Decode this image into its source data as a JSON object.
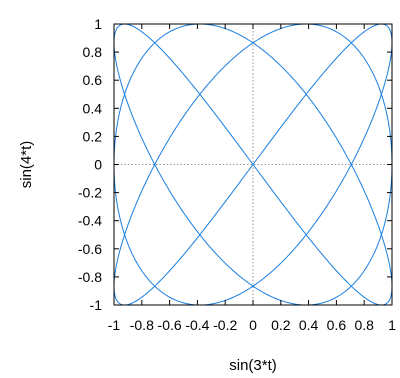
{
  "chart_data": {
    "type": "line",
    "title": "",
    "xlabel": "sin(3*t)",
    "ylabel": "sin(4*t)",
    "xlim": [
      -1,
      1
    ],
    "ylim": [
      -1,
      1
    ],
    "x_ticks": [
      -1,
      -0.8,
      -0.6,
      -0.4,
      -0.2,
      0,
      0.2,
      0.4,
      0.6,
      0.8,
      1
    ],
    "y_ticks": [
      -1,
      -0.8,
      -0.6,
      -0.4,
      -0.2,
      0,
      0.2,
      0.4,
      0.6,
      0.8,
      1
    ],
    "x_tick_labels": [
      "-1",
      "-0.8",
      "-0.6",
      "-0.4",
      "-0.2",
      "0",
      "0.2",
      "0.4",
      "0.6",
      "0.8",
      "1"
    ],
    "y_tick_labels": [
      "-1",
      "-0.8",
      "-0.6",
      "-0.4",
      "-0.2",
      "0",
      "0.2",
      "0.4",
      "0.6",
      "0.8",
      "1"
    ],
    "zero_lines": "dotted",
    "grid": false,
    "series": [
      {
        "x_expr": "sin(3*t)",
        "y_expr": "sin(4*t)",
        "color": "#1a7fe0"
      }
    ]
  }
}
